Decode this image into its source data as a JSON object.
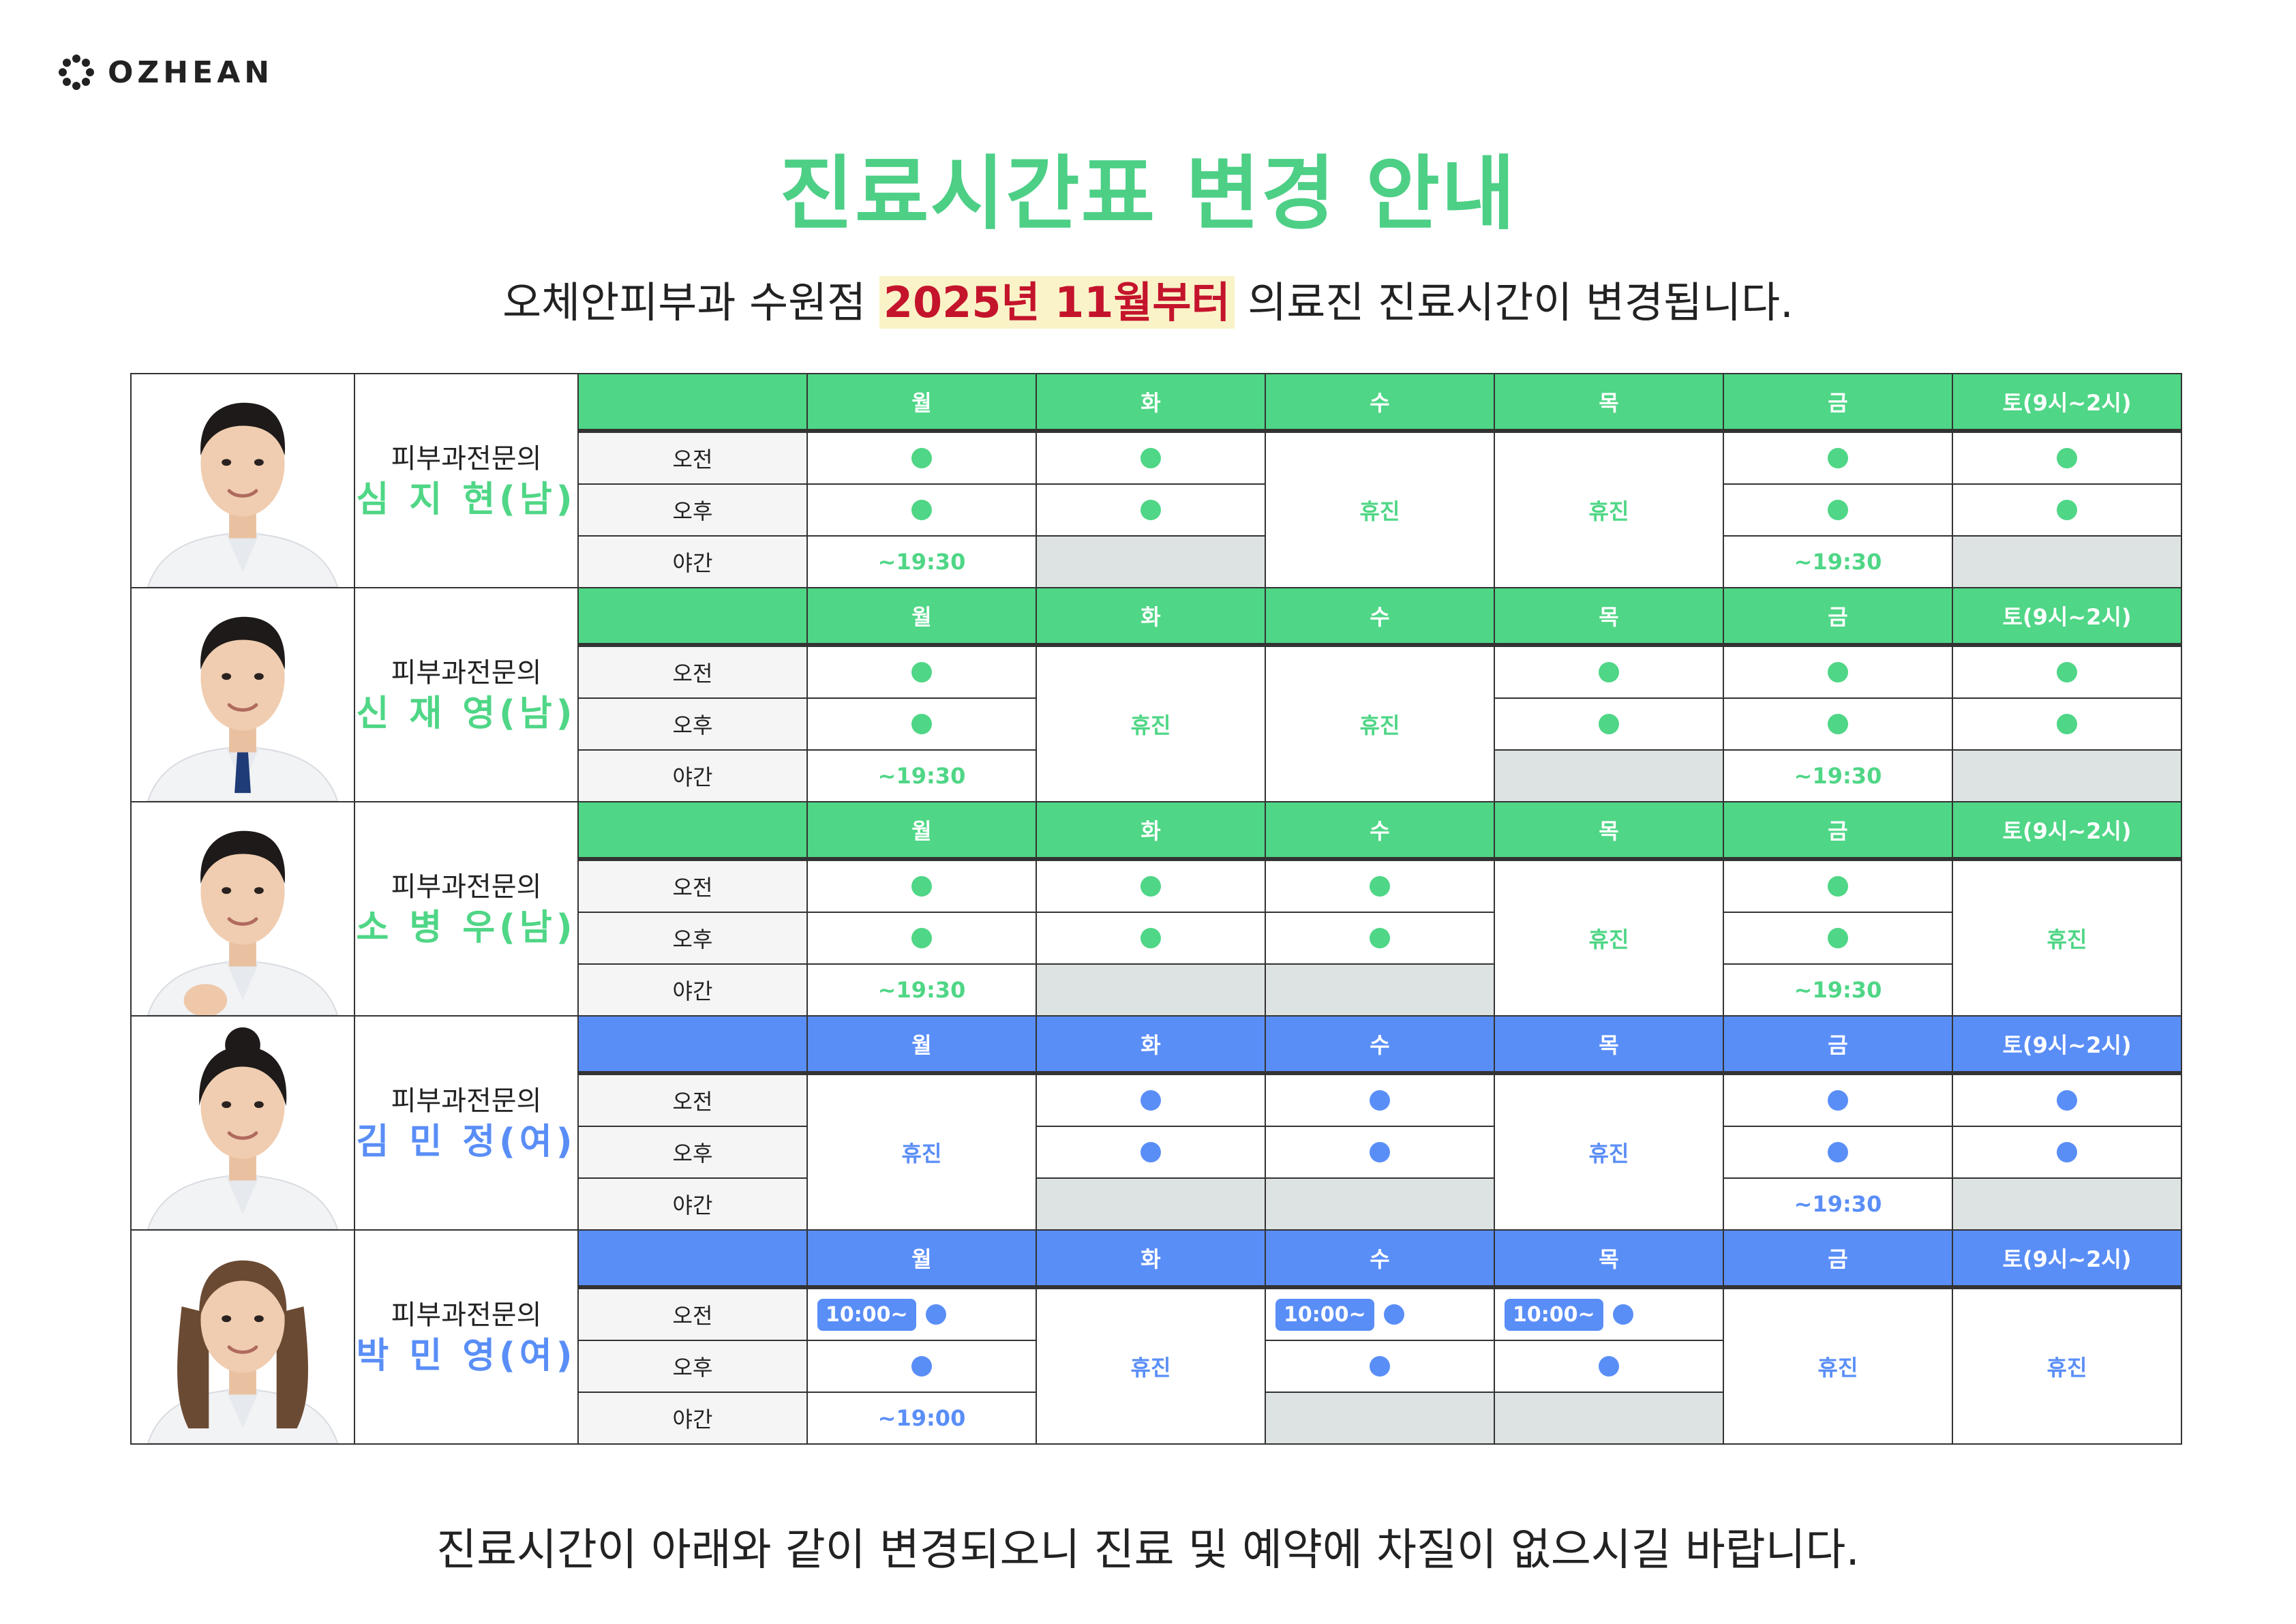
{
  "brand": {
    "name": "OZHEAN"
  },
  "title": "진료시간표 변경 안내",
  "subtitle": {
    "prefix": "오체안피부과 수원점 ",
    "highlight": "2025년 11월부터",
    "suffix": " 의료진 진료시간이 변경됩니다."
  },
  "footer": "진료시간이 아래와 같이 변경되오니 진료 및 예약에 차질이 없으시길 바랍니다.",
  "colors": {
    "green": "#4fd686",
    "blue": "#5a8ef7",
    "closed_gray": "#dde3e2",
    "highlight_red": "#c4142c"
  },
  "icons": [
    "logo-flower-icon",
    "available-dot-icon"
  ],
  "days": [
    "월",
    "화",
    "수",
    "목",
    "금",
    "토(9시~2시)"
  ],
  "slots": [
    "오전",
    "오후",
    "야간"
  ],
  "doctors": [
    {
      "specialty": "피부과전문의",
      "name": "심 지 현(남)",
      "theme": "green",
      "grid": [
        [
          {
            "t": "dot"
          },
          {
            "t": "dot"
          },
          {
            "t": "closed",
            "r": 3
          },
          {
            "t": "closed",
            "r": 3
          },
          {
            "t": "dot"
          },
          {
            "t": "dot"
          }
        ],
        [
          {
            "t": "dot"
          },
          {
            "t": "dot"
          },
          null,
          null,
          {
            "t": "dot"
          },
          {
            "t": "dot"
          }
        ],
        [
          {
            "t": "text",
            "v": "~19:30"
          },
          {
            "t": "na"
          },
          null,
          null,
          {
            "t": "text",
            "v": "~19:30"
          },
          {
            "t": "na"
          }
        ]
      ]
    },
    {
      "specialty": "피부과전문의",
      "name": "신 재 영(남)",
      "theme": "green",
      "grid": [
        [
          {
            "t": "dot"
          },
          {
            "t": "closed",
            "r": 3
          },
          {
            "t": "closed",
            "r": 3
          },
          {
            "t": "dot"
          },
          {
            "t": "dot"
          },
          {
            "t": "dot"
          }
        ],
        [
          {
            "t": "dot"
          },
          null,
          null,
          {
            "t": "dot"
          },
          {
            "t": "dot"
          },
          {
            "t": "dot"
          }
        ],
        [
          {
            "t": "text",
            "v": "~19:30"
          },
          null,
          null,
          {
            "t": "na"
          },
          {
            "t": "text",
            "v": "~19:30"
          },
          {
            "t": "na"
          }
        ]
      ]
    },
    {
      "specialty": "피부과전문의",
      "name": "소 병 우(남)",
      "theme": "green",
      "grid": [
        [
          {
            "t": "dot"
          },
          {
            "t": "dot"
          },
          {
            "t": "dot"
          },
          {
            "t": "closed",
            "r": 3
          },
          {
            "t": "dot"
          },
          {
            "t": "closed",
            "r": 3
          }
        ],
        [
          {
            "t": "dot"
          },
          {
            "t": "dot"
          },
          {
            "t": "dot"
          },
          null,
          {
            "t": "dot"
          },
          null
        ],
        [
          {
            "t": "text",
            "v": "~19:30"
          },
          {
            "t": "na"
          },
          {
            "t": "na"
          },
          null,
          {
            "t": "text",
            "v": "~19:30"
          },
          null
        ]
      ]
    },
    {
      "specialty": "피부과전문의",
      "name": "김 민 정(여)",
      "theme": "blue",
      "grid": [
        [
          {
            "t": "closed",
            "r": 3
          },
          {
            "t": "dot"
          },
          {
            "t": "dot"
          },
          {
            "t": "closed",
            "r": 3
          },
          {
            "t": "dot"
          },
          {
            "t": "dot"
          }
        ],
        [
          null,
          {
            "t": "dot"
          },
          {
            "t": "dot"
          },
          null,
          {
            "t": "dot"
          },
          {
            "t": "dot"
          }
        ],
        [
          null,
          {
            "t": "na"
          },
          {
            "t": "na"
          },
          null,
          {
            "t": "text",
            "v": "~19:30"
          },
          {
            "t": "na"
          }
        ]
      ]
    },
    {
      "specialty": "피부과전문의",
      "name": "박 민 영(여)",
      "theme": "blue",
      "grid": [
        [
          {
            "t": "badge",
            "v": "10:00~"
          },
          {
            "t": "closed",
            "r": 3
          },
          {
            "t": "badge",
            "v": "10:00~"
          },
          {
            "t": "badge",
            "v": "10:00~"
          },
          {
            "t": "closed",
            "r": 3
          },
          {
            "t": "closed",
            "r": 3
          }
        ],
        [
          {
            "t": "dot"
          },
          null,
          {
            "t": "dot"
          },
          {
            "t": "dot"
          },
          null,
          null
        ],
        [
          {
            "t": "text",
            "v": "~19:00"
          },
          null,
          {
            "t": "na"
          },
          {
            "t": "na"
          },
          null,
          null
        ]
      ]
    }
  ],
  "closed_label": "휴진"
}
